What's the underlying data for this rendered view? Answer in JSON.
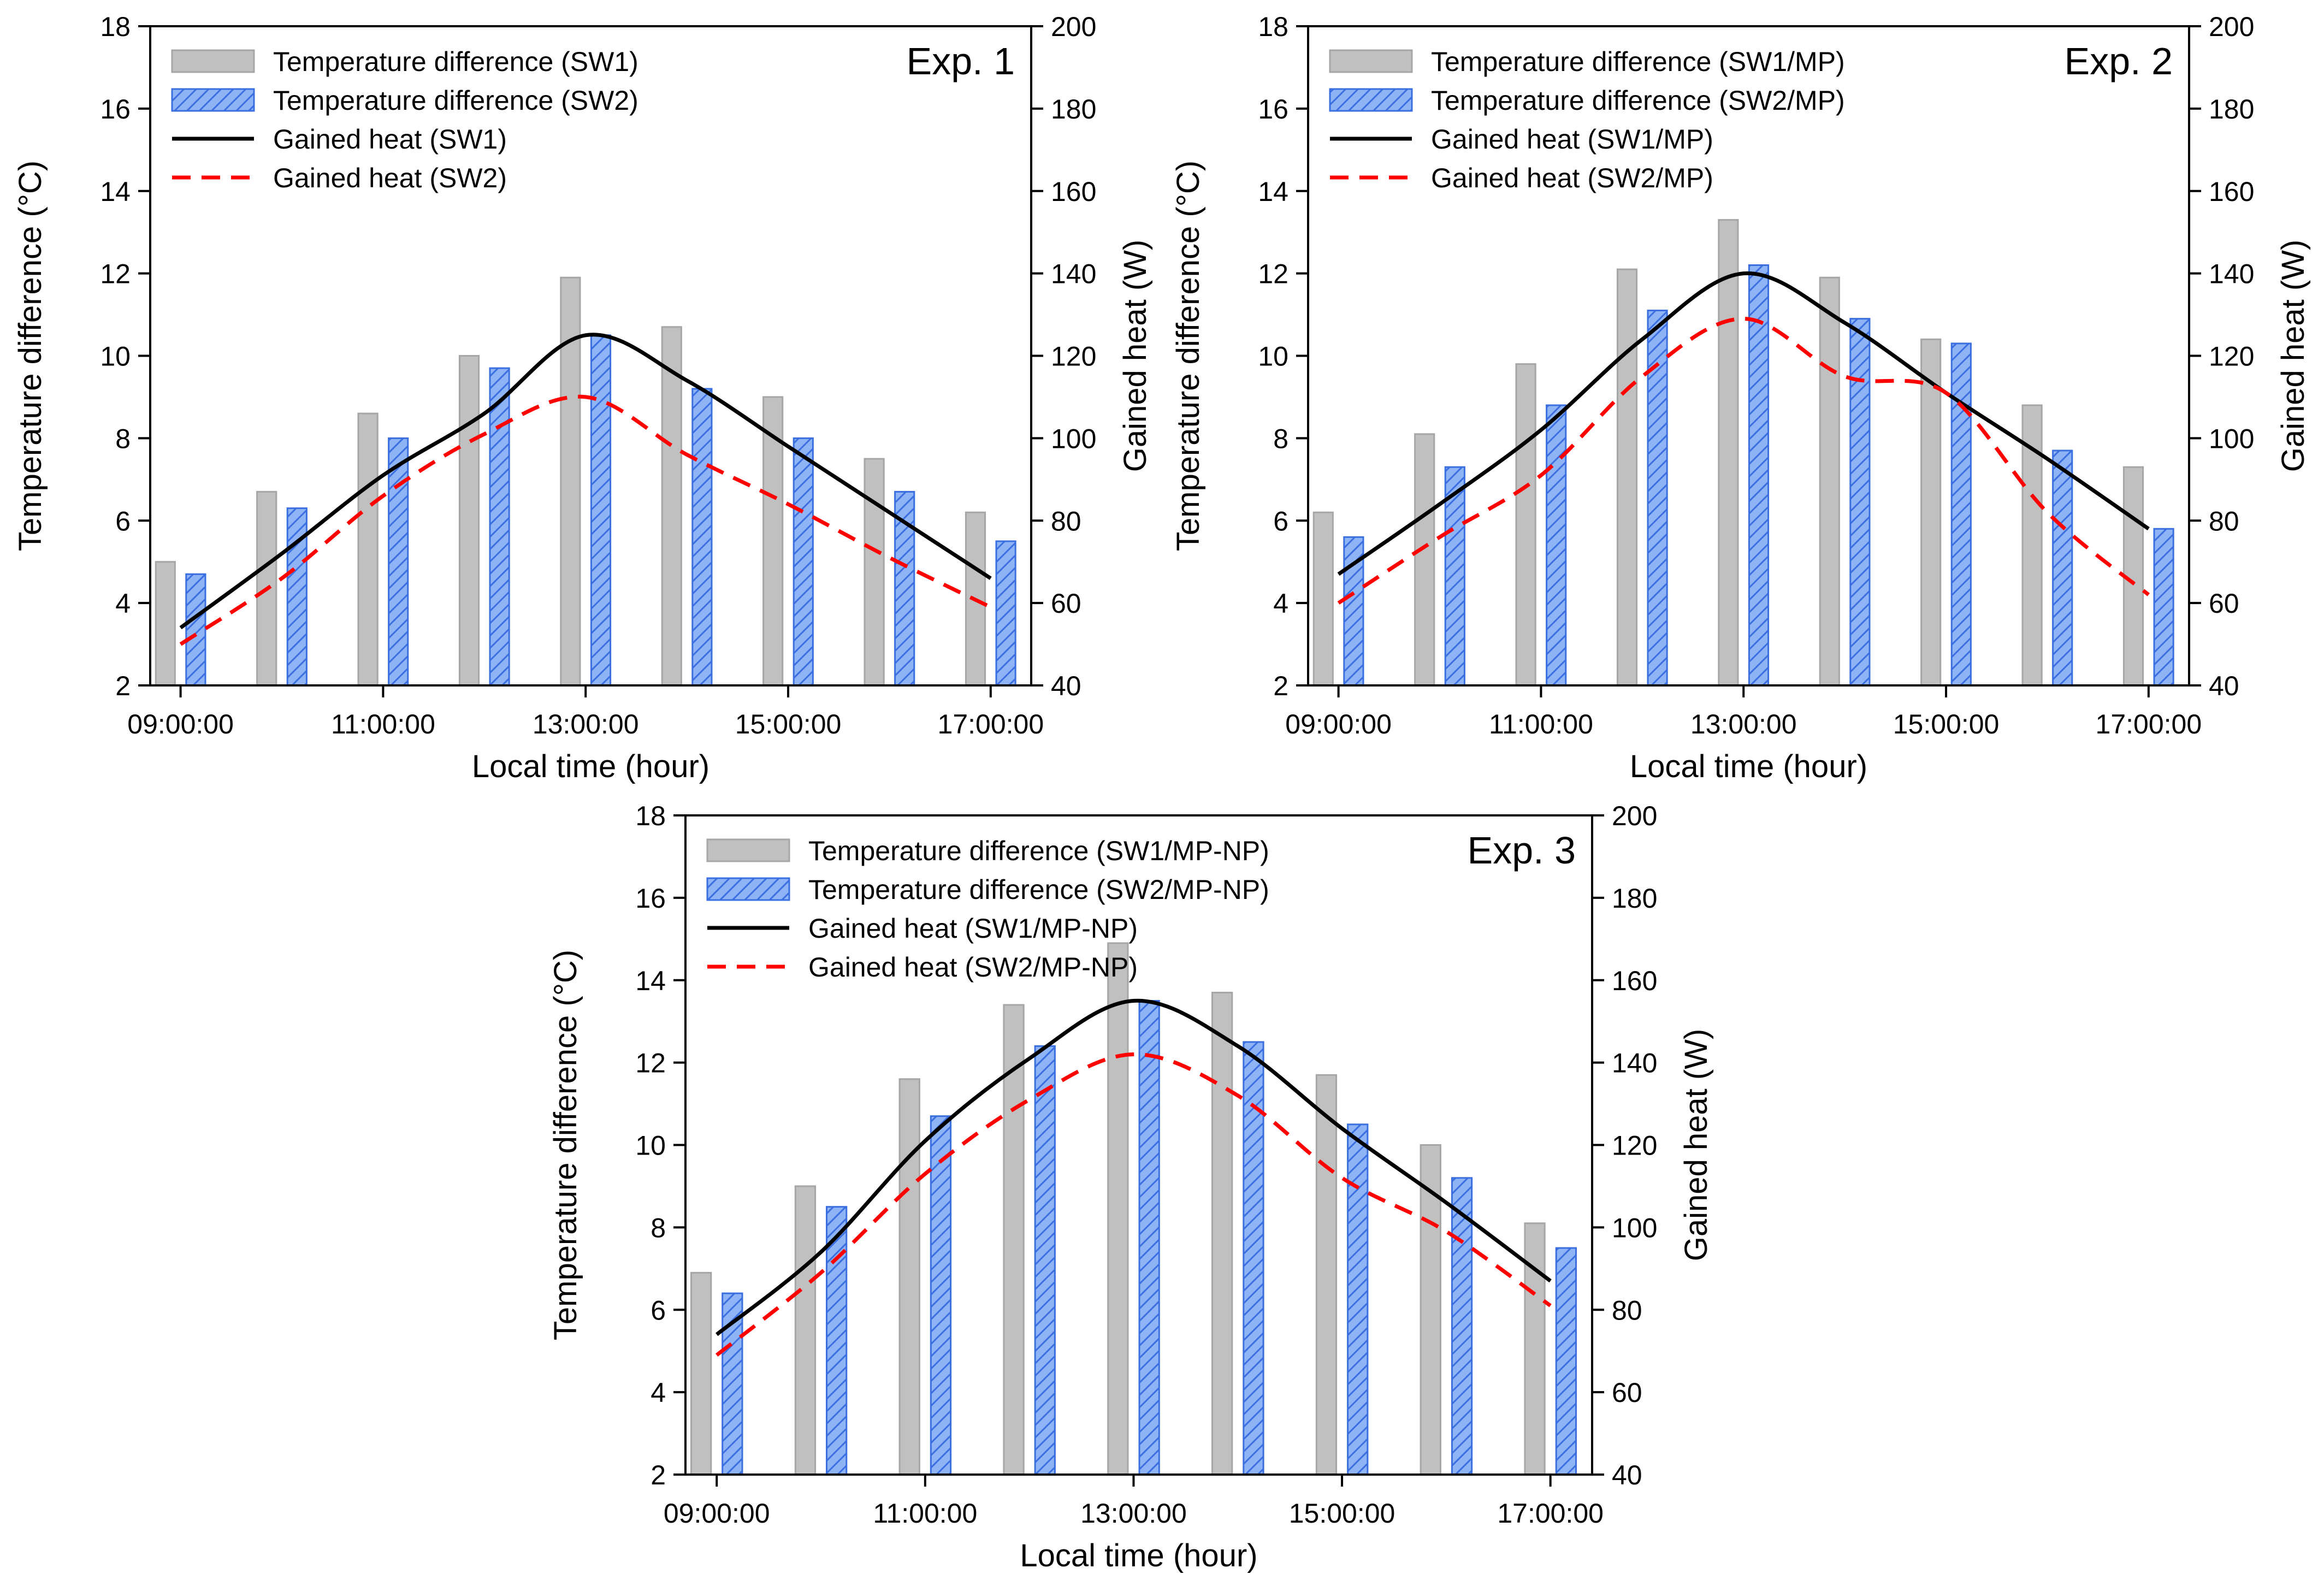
{
  "figure": {
    "background": "#ffffff"
  },
  "style": {
    "bar_gray_fill": "#c0c0c0",
    "bar_gray_stroke": "#a6a6a6",
    "bar_blue_fill": "#8fb4f6",
    "bar_blue_stroke": "#3b6fe0",
    "line_black": "#000000",
    "line_red": "#ff0000"
  },
  "chart_data": [
    {
      "id": "exp1",
      "type": "bar",
      "title": "Exp. 1",
      "xlabel": "Local time (hour)",
      "ylabel": "Temperature difference (°C)",
      "y2label": "Gained heat (W)",
      "x_tick_labels": [
        "09:00:00",
        "11:00:00",
        "13:00:00",
        "15:00:00",
        "17:00:00"
      ],
      "hours": [
        9,
        10,
        11,
        12,
        13,
        14,
        15,
        16,
        17
      ],
      "ylim": [
        2,
        18
      ],
      "yticks": [
        "2",
        "4",
        "6",
        "8",
        "10",
        "12",
        "14",
        "16",
        "18"
      ],
      "y2lim": [
        40,
        200
      ],
      "y2ticks": [
        "40",
        "60",
        "80",
        "100",
        "120",
        "140",
        "160",
        "180",
        "200"
      ],
      "bar_series": [
        {
          "name": "Temperature difference (SW1)",
          "style": "gray",
          "values": [
            5.0,
            6.7,
            8.6,
            10.0,
            11.9,
            10.7,
            9.0,
            7.5,
            6.2
          ]
        },
        {
          "name": "Temperature difference (SW2)",
          "style": "blue",
          "values": [
            4.7,
            6.3,
            8.0,
            9.7,
            10.5,
            9.2,
            8.0,
            6.7,
            5.5
          ]
        }
      ],
      "line_series": [
        {
          "name": "Gained heat (SW1)",
          "style": "solid",
          "x": [
            9,
            10,
            11,
            12,
            13,
            14,
            15,
            16,
            17
          ],
          "values": [
            54,
            72,
            91,
            106,
            125,
            114,
            98,
            82,
            66
          ]
        },
        {
          "name": "Gained heat (SW2)",
          "style": "dashed",
          "x": [
            9,
            10,
            11,
            12,
            13,
            14,
            15,
            16,
            17
          ],
          "values": [
            50,
            66,
            86,
            101,
            110,
            96,
            84,
            71,
            59
          ]
        }
      ],
      "legend": "top-left"
    },
    {
      "id": "exp2",
      "type": "bar",
      "title": "Exp. 2",
      "xlabel": "Local time (hour)",
      "ylabel": "Temperature difference (°C)",
      "y2label": "Gained heat (W)",
      "x_tick_labels": [
        "09:00:00",
        "11:00:00",
        "13:00:00",
        "15:00:00",
        "17:00:00"
      ],
      "hours": [
        9,
        10,
        11,
        12,
        13,
        14,
        15,
        16,
        17
      ],
      "ylim": [
        2,
        18
      ],
      "yticks": [
        "2",
        "4",
        "6",
        "8",
        "10",
        "12",
        "14",
        "16",
        "18"
      ],
      "y2lim": [
        40,
        200
      ],
      "y2ticks": [
        "40",
        "60",
        "80",
        "100",
        "120",
        "140",
        "160",
        "180",
        "200"
      ],
      "bar_series": [
        {
          "name": "Temperature difference (SW1/MP)",
          "style": "gray",
          "values": [
            6.2,
            8.1,
            9.8,
            12.1,
            13.3,
            11.9,
            10.4,
            8.8,
            7.3
          ]
        },
        {
          "name": "Temperature difference (SW2/MP)",
          "style": "blue",
          "values": [
            5.6,
            7.3,
            8.8,
            11.1,
            12.2,
            10.9,
            10.3,
            7.7,
            5.8
          ]
        }
      ],
      "line_series": [
        {
          "name": "Gained heat (SW1/MP)",
          "style": "solid",
          "x": [
            9,
            10,
            11,
            12,
            13,
            14,
            15,
            16,
            17
          ],
          "values": [
            67,
            84,
            102,
            124,
            140,
            128,
            111,
            95,
            78
          ]
        },
        {
          "name": "Gained heat (SW2/MP)",
          "style": "dashed",
          "x": [
            9,
            10,
            11,
            12,
            13,
            14,
            15,
            16,
            17
          ],
          "values": [
            60,
            76,
            91,
            115,
            129,
            115,
            111,
            82,
            62
          ]
        }
      ],
      "legend": "top-left"
    },
    {
      "id": "exp3",
      "type": "bar",
      "title": "Exp. 3",
      "xlabel": "Local time (hour)",
      "ylabel": "Temperature difference (°C)",
      "y2label": "Gained heat (W)",
      "x_tick_labels": [
        "09:00:00",
        "11:00:00",
        "13:00:00",
        "15:00:00",
        "17:00:00"
      ],
      "hours": [
        9,
        10,
        11,
        12,
        13,
        14,
        15,
        16,
        17
      ],
      "ylim": [
        2,
        18
      ],
      "yticks": [
        "2",
        "4",
        "6",
        "8",
        "10",
        "12",
        "14",
        "16",
        "18"
      ],
      "y2lim": [
        40,
        200
      ],
      "y2ticks": [
        "40",
        "60",
        "80",
        "100",
        "120",
        "140",
        "160",
        "180",
        "200"
      ],
      "bar_series": [
        {
          "name": "Temperature difference (SW1/MP-NP)",
          "style": "gray",
          "values": [
            6.9,
            9.0,
            11.6,
            13.4,
            14.9,
            13.7,
            11.7,
            10.0,
            8.1
          ]
        },
        {
          "name": "Temperature difference (SW2/MP-NP)",
          "style": "blue",
          "values": [
            6.4,
            8.5,
            10.7,
            12.4,
            13.5,
            12.5,
            10.5,
            9.2,
            7.5
          ]
        }
      ],
      "line_series": [
        {
          "name": "Gained heat (SW1/MP-NP)",
          "style": "solid",
          "x": [
            9,
            10,
            11,
            12,
            13,
            14,
            15,
            16,
            17
          ],
          "values": [
            74,
            94,
            121,
            141,
            155,
            144,
            124,
            106,
            87
          ]
        },
        {
          "name": "Gained heat (SW2/MP-NP)",
          "style": "dashed",
          "x": [
            9,
            10,
            11,
            12,
            13,
            14,
            15,
            16,
            17
          ],
          "values": [
            69,
            89,
            113,
            131,
            142,
            132,
            112,
            99,
            81
          ]
        }
      ],
      "legend": "top-left"
    }
  ]
}
